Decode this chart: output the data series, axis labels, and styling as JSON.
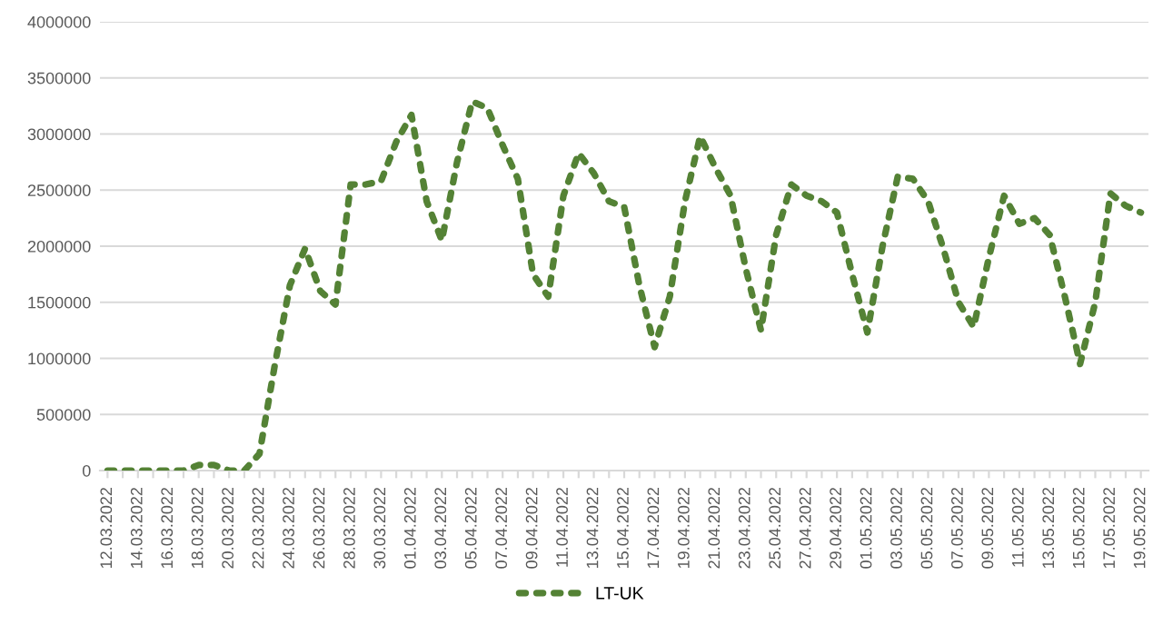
{
  "chart_data": {
    "type": "line",
    "categories": [
      "12.03.2022",
      null,
      "14.03.2022",
      null,
      "16.03.2022",
      null,
      "18.03.2022",
      null,
      "20.03.2022",
      null,
      "22.03.2022",
      null,
      "24.03.2022",
      null,
      "26.03.2022",
      null,
      "28.03.2022",
      null,
      "30.03.2022",
      null,
      "01.04.2022",
      null,
      "03.04.2022",
      null,
      "05.04.2022",
      null,
      "07.04.2022",
      null,
      "09.04.2022",
      null,
      "11.04.2022",
      null,
      "13.04.2022",
      null,
      "15.04.2022",
      null,
      "17.04.2022",
      null,
      "19.04.2022",
      null,
      "21.04.2022",
      null,
      "23.04.2022",
      null,
      "25.04.2022",
      null,
      "27.04.2022",
      null,
      "29.04.2022",
      null,
      "01.05.2022",
      null,
      "03.05.2022",
      null,
      "05.05.2022",
      null,
      "07.05.2022",
      null,
      "09.05.2022",
      null,
      "11.05.2022",
      null,
      "13.05.2022",
      null,
      "15.05.2022",
      null,
      "17.05.2022",
      null,
      "19.05.2022"
    ],
    "series": [
      {
        "name": "LT-UK",
        "color": "#548235",
        "values": [
          0,
          0,
          0,
          0,
          0,
          0,
          50000,
          50000,
          0,
          0,
          150000,
          935000,
          1650000,
          1980000,
          1600000,
          1480000,
          2550000,
          2550000,
          2580000,
          2930000,
          3170000,
          2400000,
          2050000,
          2750000,
          3290000,
          3230000,
          2900000,
          2600000,
          1750000,
          1550000,
          2450000,
          2830000,
          2650000,
          2400000,
          2350000,
          1650000,
          1100000,
          1550000,
          2400000,
          2980000,
          2700000,
          2450000,
          1800000,
          1250000,
          2100000,
          2550000,
          2450000,
          2400000,
          2300000,
          1750000,
          1230000,
          2000000,
          2620000,
          2600000,
          2400000,
          1980000,
          1500000,
          1280000,
          1900000,
          2450000,
          2200000,
          2250000,
          2100000,
          1550000,
          950000,
          1500000,
          2470000,
          2360000,
          2300000
        ]
      }
    ],
    "ylim": [
      0,
      4000000
    ],
    "yticks": [
      0,
      500000,
      1000000,
      1500000,
      2000000,
      2500000,
      3000000,
      3500000,
      4000000
    ],
    "grid": "y",
    "legend": "bottom",
    "marker": "none",
    "line_style": "dotted"
  }
}
